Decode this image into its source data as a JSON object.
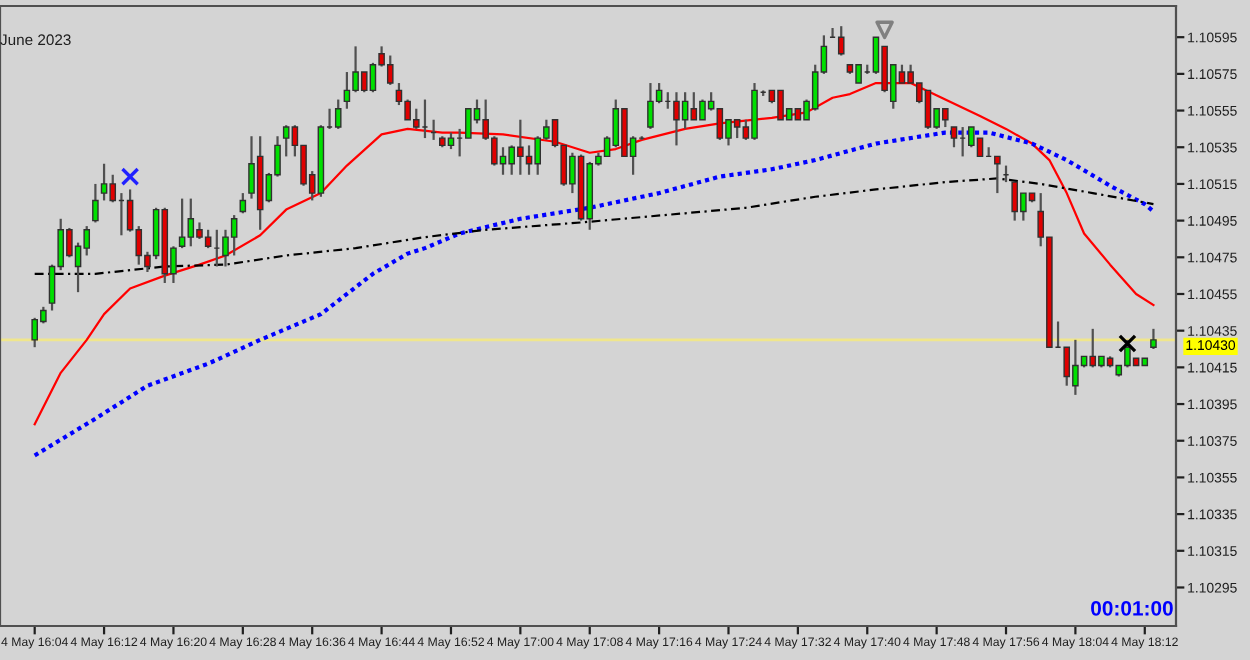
{
  "chart_data": {
    "type": "candlestick",
    "categories": [
      "4 May 16:04",
      null,
      null,
      null,
      null,
      null,
      null,
      null,
      "4 May 16:12",
      null,
      null,
      null,
      null,
      null,
      null,
      null,
      "4 May 16:20",
      null,
      null,
      null,
      null,
      null,
      null,
      null,
      "4 May 16:28",
      null,
      null,
      null,
      null,
      null,
      null,
      null,
      "4 May 16:36",
      null,
      null,
      null,
      null,
      null,
      null,
      null,
      "4 May 16:44",
      null,
      null,
      null,
      null,
      null,
      null,
      null,
      "4 May 16:52",
      null,
      null,
      null,
      null,
      null,
      null,
      null,
      "4 May 17:00",
      null,
      null,
      null,
      null,
      null,
      null,
      null,
      "4 May 17:08",
      null,
      null,
      null,
      null,
      null,
      null,
      null,
      "4 May 17:16",
      null,
      null,
      null,
      null,
      null,
      null,
      null,
      "4 May 17:24",
      null,
      null,
      null,
      null,
      null,
      null,
      null,
      "4 May 17:32",
      null,
      null,
      null,
      null,
      null,
      null,
      null,
      "4 May 17:40",
      null,
      null,
      null,
      null,
      null,
      null,
      null,
      "4 May 17:48",
      null,
      null,
      null,
      null,
      null,
      null,
      null,
      "4 May 17:56",
      null,
      null,
      null,
      null,
      null,
      null,
      null,
      "4 May 18:04",
      null,
      null,
      null,
      null,
      null,
      null,
      null,
      "4 May 18:12",
      null
    ],
    "ohlc": [
      [
        1.1043,
        1.10442,
        1.10426,
        1.10441
      ],
      [
        1.1044,
        1.10448,
        1.10439,
        1.10446
      ],
      [
        1.1045,
        1.10471,
        1.10446,
        1.1047
      ],
      [
        1.1047,
        1.10496,
        1.10468,
        1.1049
      ],
      [
        1.1049,
        1.10491,
        1.10475,
        1.10476
      ],
      [
        1.1047,
        1.10483,
        1.10456,
        1.10481
      ],
      [
        1.1048,
        1.10492,
        1.10476,
        1.1049
      ],
      [
        1.10495,
        1.10515,
        1.10494,
        1.10506
      ],
      [
        1.1051,
        1.10526,
        1.10506,
        1.10515
      ],
      [
        1.10515,
        1.1052,
        1.10505,
        1.10506
      ],
      [
        1.10506,
        1.1051,
        1.10487,
        1.10506
      ],
      [
        1.10506,
        1.10512,
        1.10489,
        1.1049
      ],
      [
        1.1049,
        1.10492,
        1.10471,
        1.10476
      ],
      [
        1.10476,
        1.10478,
        1.10467,
        1.1047
      ],
      [
        1.10476,
        1.10502,
        1.10474,
        1.10501
      ],
      [
        1.10501,
        1.10502,
        1.10461,
        1.10466
      ],
      [
        1.10466,
        1.10481,
        1.10461,
        1.1048
      ],
      [
        1.10481,
        1.10507,
        1.1048,
        1.10486
      ],
      [
        1.10486,
        1.10507,
        1.10481,
        1.10496
      ],
      [
        1.1049,
        1.10494,
        1.10485,
        1.10486
      ],
      [
        1.10486,
        1.1049,
        1.1048,
        1.10481
      ],
      [
        1.1048,
        1.1049,
        1.1047,
        1.1048
      ],
      [
        1.10476,
        1.1049,
        1.1047,
        1.10486
      ],
      [
        1.10486,
        1.10498,
        1.10476,
        1.10496
      ],
      [
        1.105,
        1.1051,
        1.10499,
        1.10506
      ],
      [
        1.1051,
        1.10541,
        1.10507,
        1.10526
      ],
      [
        1.1053,
        1.10541,
        1.1049,
        1.10501
      ],
      [
        1.10506,
        1.10521,
        1.10505,
        1.1052
      ],
      [
        1.1052,
        1.10541,
        1.10519,
        1.10536
      ],
      [
        1.1054,
        1.10547,
        1.1053,
        1.10546
      ],
      [
        1.10546,
        1.10547,
        1.1053,
        1.10536
      ],
      [
        1.10536,
        1.10536,
        1.10514,
        1.10515
      ],
      [
        1.1052,
        1.10522,
        1.10506,
        1.1051
      ],
      [
        1.1051,
        1.10547,
        1.10508,
        1.10546
      ],
      [
        1.10546,
        1.10556,
        1.10545,
        1.10546
      ],
      [
        1.10546,
        1.10561,
        1.10545,
        1.10556
      ],
      [
        1.1056,
        1.10576,
        1.10556,
        1.10566
      ],
      [
        1.10566,
        1.1059,
        1.10565,
        1.10576
      ],
      [
        1.10576,
        1.10576,
        1.10565,
        1.10566
      ],
      [
        1.10566,
        1.10581,
        1.10565,
        1.1058
      ],
      [
        1.10586,
        1.1059,
        1.10579,
        1.1058
      ],
      [
        1.1058,
        1.10585,
        1.10569,
        1.1057
      ],
      [
        1.10566,
        1.1057,
        1.10558,
        1.1056
      ],
      [
        1.1056,
        1.10561,
        1.1055,
        1.1055
      ],
      [
        1.1055,
        1.10556,
        1.10545,
        1.10546
      ],
      [
        1.10546,
        1.10561,
        1.1054,
        1.10546
      ],
      [
        1.10543,
        1.1055,
        1.10539,
        1.10543
      ],
      [
        1.1054,
        1.10541,
        1.10535,
        1.10536
      ],
      [
        1.10536,
        1.10543,
        1.10534,
        1.1054
      ],
      [
        1.1054,
        1.10545,
        1.1053,
        1.1054
      ],
      [
        1.1054,
        1.10556,
        1.1054,
        1.10556
      ],
      [
        1.1055,
        1.10561,
        1.10548,
        1.10556
      ],
      [
        1.1055,
        1.10561,
        1.10539,
        1.1054
      ],
      [
        1.1054,
        1.10541,
        1.10525,
        1.10526
      ],
      [
        1.10526,
        1.10535,
        1.1052,
        1.1053
      ],
      [
        1.10526,
        1.10536,
        1.1052,
        1.10535
      ],
      [
        1.10535,
        1.1055,
        1.1052,
        1.1053
      ],
      [
        1.1053,
        1.10536,
        1.1052,
        1.10526
      ],
      [
        1.10526,
        1.10541,
        1.1052,
        1.1054
      ],
      [
        1.1054,
        1.1055,
        1.10539,
        1.10546
      ],
      [
        1.1055,
        1.1055,
        1.10535,
        1.10536
      ],
      [
        1.10536,
        1.10536,
        1.10514,
        1.10515
      ],
      [
        1.10515,
        1.10532,
        1.1051,
        1.1053
      ],
      [
        1.1053,
        1.10531,
        1.10495,
        1.10496
      ],
      [
        1.10496,
        1.10527,
        1.1049,
        1.10526
      ],
      [
        1.10526,
        1.10532,
        1.10525,
        1.1053
      ],
      [
        1.1053,
        1.10541,
        1.1053,
        1.1054
      ],
      [
        1.10536,
        1.10561,
        1.10535,
        1.10556
      ],
      [
        1.10556,
        1.10556,
        1.1053,
        1.1053
      ],
      [
        1.1053,
        1.10541,
        1.1052,
        1.1054
      ],
      [
        1.1054,
        1.10541,
        1.10539,
        1.1054
      ],
      [
        1.10546,
        1.1057,
        1.10545,
        1.1056
      ],
      [
        1.1056,
        1.1057,
        1.10559,
        1.10566
      ],
      [
        1.1056,
        1.10565,
        1.10556,
        1.1056
      ],
      [
        1.1056,
        1.10565,
        1.10536,
        1.1055
      ],
      [
        1.1055,
        1.10565,
        1.10545,
        1.1056
      ],
      [
        1.10556,
        1.10565,
        1.1055,
        1.1055
      ],
      [
        1.1055,
        1.10561,
        1.1055,
        1.1056
      ],
      [
        1.10556,
        1.10565,
        1.10555,
        1.1056
      ],
      [
        1.10556,
        1.10556,
        1.10539,
        1.1054
      ],
      [
        1.1054,
        1.1055,
        1.10536,
        1.1055
      ],
      [
        1.1055,
        1.1055,
        1.1054,
        1.10546
      ],
      [
        1.10546,
        1.1055,
        1.10539,
        1.1054
      ],
      [
        1.1054,
        1.1057,
        1.10539,
        1.10566
      ],
      [
        1.10565,
        1.10566,
        1.10563,
        1.10565
      ],
      [
        1.10566,
        1.10566,
        1.10559,
        1.1056
      ],
      [
        1.10566,
        1.10566,
        1.1055,
        1.1055
      ],
      [
        1.1055,
        1.10556,
        1.1055,
        1.10556
      ],
      [
        1.10556,
        1.10556,
        1.1055,
        1.1055
      ],
      [
        1.1055,
        1.10561,
        1.1055,
        1.1056
      ],
      [
        1.10556,
        1.1058,
        1.10555,
        1.10576
      ],
      [
        1.10576,
        1.10596,
        1.10575,
        1.1059
      ],
      [
        1.10595,
        1.106,
        1.10595,
        1.10595
      ],
      [
        1.10595,
        1.10601,
        1.10585,
        1.10586
      ],
      [
        1.1058,
        1.1058,
        1.10575,
        1.10576
      ],
      [
        1.1057,
        1.1058,
        1.1057,
        1.1058
      ],
      [
        1.10576,
        1.1058,
        1.10575,
        1.10576
      ],
      [
        1.10576,
        1.10595,
        1.10575,
        1.10595
      ],
      [
        1.1059,
        1.1059,
        1.10565,
        1.10566
      ],
      [
        1.1056,
        1.1058,
        1.10556,
        1.1058
      ],
      [
        1.10576,
        1.1058,
        1.1057,
        1.1057
      ],
      [
        1.10576,
        1.1058,
        1.1057,
        1.1057
      ],
      [
        1.1057,
        1.1057,
        1.10559,
        1.1056
      ],
      [
        1.10566,
        1.10566,
        1.10545,
        1.10546
      ],
      [
        1.10546,
        1.10556,
        1.10545,
        1.10556
      ],
      [
        1.10556,
        1.10556,
        1.10546,
        1.1055
      ],
      [
        1.10546,
        1.10546,
        1.10535,
        1.1054
      ],
      [
        1.1054,
        1.10546,
        1.1053,
        1.1054
      ],
      [
        1.10536,
        1.10546,
        1.10535,
        1.10546
      ],
      [
        1.1054,
        1.1054,
        1.1053,
        1.1053
      ],
      [
        1.1053,
        1.10535,
        1.1053,
        1.1053
      ],
      [
        1.1053,
        1.1053,
        1.1051,
        1.10526
      ],
      [
        1.1052,
        1.10525,
        1.10516,
        1.1052
      ],
      [
        1.10516,
        1.10516,
        1.10495,
        1.105
      ],
      [
        1.105,
        1.1051,
        1.10495,
        1.1051
      ],
      [
        1.1051,
        1.1051,
        1.10505,
        1.10506
      ],
      [
        1.105,
        1.1051,
        1.10481,
        1.10486
      ],
      [
        1.10486,
        1.10486,
        1.10426,
        1.10426
      ],
      [
        1.10426,
        1.1044,
        1.10426,
        1.10426
      ],
      [
        1.10426,
        1.10426,
        1.10405,
        1.1041
      ],
      [
        1.10405,
        1.1043,
        1.104,
        1.10416
      ],
      [
        1.10416,
        1.10421,
        1.10415,
        1.10421
      ],
      [
        1.10421,
        1.10436,
        1.10415,
        1.10416
      ],
      [
        1.10416,
        1.10421,
        1.10415,
        1.10421
      ],
      [
        1.1042,
        1.10421,
        1.10415,
        1.10416
      ],
      [
        1.10411,
        1.10416,
        1.1041,
        1.10416
      ],
      [
        1.10416,
        1.1043,
        1.10415,
        1.10426
      ],
      [
        1.1042,
        1.1042,
        1.10416,
        1.10416
      ],
      [
        1.10416,
        1.1042,
        1.10416,
        1.1042
      ],
      [
        1.10426,
        1.10436,
        1.10425,
        1.1043
      ]
    ],
    "series": [
      {
        "type": "line",
        "color": "#ff0000",
        "line_style": "solid",
        "values": [
          1.10384,
          null,
          null,
          1.10412,
          null,
          null,
          1.1043,
          null,
          1.10444,
          null,
          null,
          1.10458,
          null,
          null,
          null,
          1.10465,
          null,
          null,
          null,
          1.10471,
          null,
          null,
          1.10476,
          null,
          null,
          null,
          1.10487,
          null,
          null,
          1.10501,
          null,
          null,
          null,
          1.1051,
          null,
          null,
          1.10525,
          null,
          null,
          null,
          1.10542,
          null,
          null,
          1.10545,
          null,
          null,
          null,
          1.10543,
          null,
          1.10543,
          null,
          null,
          null,
          null,
          1.10542,
          null,
          null,
          null,
          null,
          null,
          1.10538,
          null,
          null,
          null,
          1.10532,
          null,
          null,
          1.10534,
          null,
          null,
          1.10539,
          null,
          null,
          null,
          null,
          1.10545,
          null,
          null,
          null,
          1.10548,
          null,
          null,
          null,
          null,
          null,
          1.10551,
          null,
          null,
          null,
          1.10554,
          null,
          null,
          1.10562,
          null,
          1.10564,
          null,
          null,
          1.1057,
          null,
          null,
          null,
          1.1057,
          null,
          null,
          null,
          1.10561,
          null,
          null,
          null,
          1.10552,
          null,
          null,
          1.10545,
          null,
          null,
          1.10537,
          null,
          1.10528,
          null,
          1.1051,
          null,
          1.10488,
          null,
          null,
          1.10471,
          null,
          null,
          1.10455,
          null,
          1.10449
        ]
      },
      {
        "type": "line",
        "color": "#0000ff",
        "line_style": "dotted",
        "values": [
          1.10367,
          null,
          null,
          null,
          null,
          null,
          null,
          1.10387,
          null,
          null,
          null,
          null,
          null,
          1.10405,
          null,
          null,
          null,
          null,
          null,
          null,
          1.10417,
          null,
          null,
          null,
          null,
          null,
          1.1043,
          null,
          null,
          null,
          null,
          null,
          null,
          1.10444,
          null,
          null,
          null,
          null,
          null,
          1.10466,
          null,
          null,
          null,
          1.10477,
          null,
          1.1048,
          null,
          null,
          null,
          1.10488,
          null,
          null,
          null,
          null,
          null,
          null,
          1.10496,
          null,
          null,
          null,
          null,
          null,
          null,
          null,
          1.10502,
          null,
          null,
          null,
          null,
          null,
          null,
          null,
          1.1051,
          null,
          null,
          null,
          null,
          null,
          null,
          1.10519,
          null,
          null,
          null,
          null,
          null,
          1.10523,
          null,
          null,
          null,
          null,
          1.10528,
          null,
          null,
          null,
          null,
          null,
          null,
          1.10537,
          null,
          null,
          null,
          null,
          null,
          null,
          null,
          1.10543,
          null,
          null,
          null,
          null,
          1.10543,
          null,
          null,
          null,
          null,
          1.10537,
          null,
          null,
          null,
          1.10528,
          null,
          null,
          null,
          null,
          1.10514,
          null,
          null,
          null,
          1.10504,
          1.105
        ]
      },
      {
        "type": "line",
        "color": "#000000",
        "line_style": "dashed",
        "values": [
          1.10466,
          null,
          null,
          null,
          null,
          null,
          null,
          1.10466,
          null,
          null,
          null,
          null,
          null,
          null,
          null,
          1.1047,
          null,
          null,
          null,
          null,
          null,
          null,
          1.10471,
          null,
          null,
          null,
          null,
          null,
          null,
          1.10476,
          null,
          null,
          null,
          null,
          null,
          null,
          null,
          1.1048,
          null,
          null,
          null,
          null,
          null,
          null,
          null,
          1.10486,
          null,
          null,
          null,
          null,
          null,
          null,
          1.1049,
          null,
          null,
          null,
          null,
          null,
          null,
          null,
          null,
          null,
          null,
          1.10494,
          null,
          null,
          null,
          null,
          null,
          null,
          null,
          null,
          null,
          null,
          null,
          1.10499,
          null,
          null,
          null,
          null,
          null,
          null,
          1.10502,
          null,
          null,
          null,
          null,
          null,
          null,
          null,
          1.10508,
          null,
          null,
          null,
          null,
          null,
          null,
          1.10512,
          null,
          null,
          null,
          null,
          null,
          null,
          null,
          1.10516,
          null,
          null,
          null,
          null,
          null,
          1.10518,
          null,
          null,
          null,
          null,
          1.10515,
          null,
          null,
          null,
          null,
          null,
          1.1051,
          null,
          null,
          null,
          null,
          null,
          null,
          1.10504
        ]
      },
      {
        "type": "scatter",
        "marker": "cross",
        "color": "#2020ff",
        "values": [
          null,
          null,
          null,
          null,
          null,
          null,
          null,
          null,
          null,
          null,
          null,
          1.10519,
          null,
          null,
          null,
          null,
          null,
          null,
          null,
          null,
          null,
          null,
          null,
          null,
          null,
          null,
          null,
          null,
          null,
          null,
          null,
          null,
          null,
          null,
          null,
          null,
          null,
          null,
          null,
          null,
          null,
          null,
          null,
          null,
          null,
          null,
          null,
          null,
          null,
          null,
          null,
          null,
          null,
          null,
          null,
          null,
          null,
          null,
          null,
          null,
          null,
          null,
          null,
          null,
          null,
          null,
          null,
          null,
          null,
          null,
          null,
          null,
          null,
          null,
          null,
          null,
          null,
          null,
          null,
          null,
          null,
          null,
          null,
          null,
          null,
          null,
          null,
          null,
          null,
          null,
          null,
          null,
          null,
          null,
          null,
          null,
          null,
          null,
          null,
          null,
          null,
          null,
          null,
          null,
          null,
          null,
          null,
          null,
          null,
          null,
          null,
          null,
          null,
          null,
          null,
          null,
          null,
          null,
          null,
          null,
          null,
          null,
          null,
          null,
          null,
          null,
          null,
          null,
          null,
          null
        ]
      },
      {
        "type": "scatter",
        "marker": "triangle",
        "color": "#808080",
        "values": [
          null,
          null,
          null,
          null,
          null,
          null,
          null,
          null,
          null,
          null,
          null,
          null,
          null,
          null,
          null,
          null,
          null,
          null,
          null,
          null,
          null,
          null,
          null,
          null,
          null,
          null,
          null,
          null,
          null,
          null,
          null,
          null,
          null,
          null,
          null,
          null,
          null,
          null,
          null,
          null,
          null,
          null,
          null,
          null,
          null,
          null,
          null,
          null,
          null,
          null,
          null,
          null,
          null,
          null,
          null,
          null,
          null,
          null,
          null,
          null,
          null,
          null,
          null,
          null,
          null,
          null,
          null,
          null,
          null,
          null,
          null,
          null,
          null,
          null,
          null,
          null,
          null,
          null,
          null,
          null,
          null,
          null,
          null,
          null,
          null,
          null,
          null,
          null,
          null,
          null,
          null,
          null,
          null,
          null,
          null,
          null,
          null,
          null,
          1.10599,
          null,
          null,
          null,
          null,
          null,
          null,
          null,
          null,
          null,
          null,
          null,
          null,
          null,
          null,
          null,
          null,
          null,
          null,
          null,
          null,
          null,
          null,
          null,
          null,
          null,
          null,
          null,
          null,
          null,
          null,
          null
        ]
      },
      {
        "type": "scatter",
        "marker": "cross",
        "color": "#000000",
        "values": [
          null,
          null,
          null,
          null,
          null,
          null,
          null,
          null,
          null,
          null,
          null,
          null,
          null,
          null,
          null,
          null,
          null,
          null,
          null,
          null,
          null,
          null,
          null,
          null,
          null,
          null,
          null,
          null,
          null,
          null,
          null,
          null,
          null,
          null,
          null,
          null,
          null,
          null,
          null,
          null,
          null,
          null,
          null,
          null,
          null,
          null,
          null,
          null,
          null,
          null,
          null,
          null,
          null,
          null,
          null,
          null,
          null,
          null,
          null,
          null,
          null,
          null,
          null,
          null,
          null,
          null,
          null,
          null,
          null,
          null,
          null,
          null,
          null,
          null,
          null,
          null,
          null,
          null,
          null,
          null,
          null,
          null,
          null,
          null,
          null,
          null,
          null,
          null,
          null,
          null,
          null,
          null,
          null,
          null,
          null,
          null,
          null,
          null,
          null,
          null,
          null,
          null,
          null,
          null,
          null,
          null,
          null,
          null,
          null,
          null,
          null,
          null,
          null,
          null,
          null,
          null,
          null,
          null,
          null,
          null,
          null,
          null,
          null,
          null,
          null,
          null,
          1.10428,
          null,
          null,
          null
        ]
      }
    ],
    "ref_lines": [
      {
        "axis": "y",
        "value": 1.1043,
        "label": "1.10430",
        "color": "#f0e68c"
      }
    ],
    "ylim": [
      1.10274,
      1.10612
    ],
    "yticks": [
      1.10595,
      1.10575,
      1.10555,
      1.10535,
      1.10515,
      1.10495,
      1.10475,
      1.10455,
      1.10435,
      1.10415,
      1.10395,
      1.10375,
      1.10355,
      1.10335,
      1.10315,
      1.10295
    ],
    "annotations": [
      "June 2023",
      "00:01:00"
    ]
  }
}
